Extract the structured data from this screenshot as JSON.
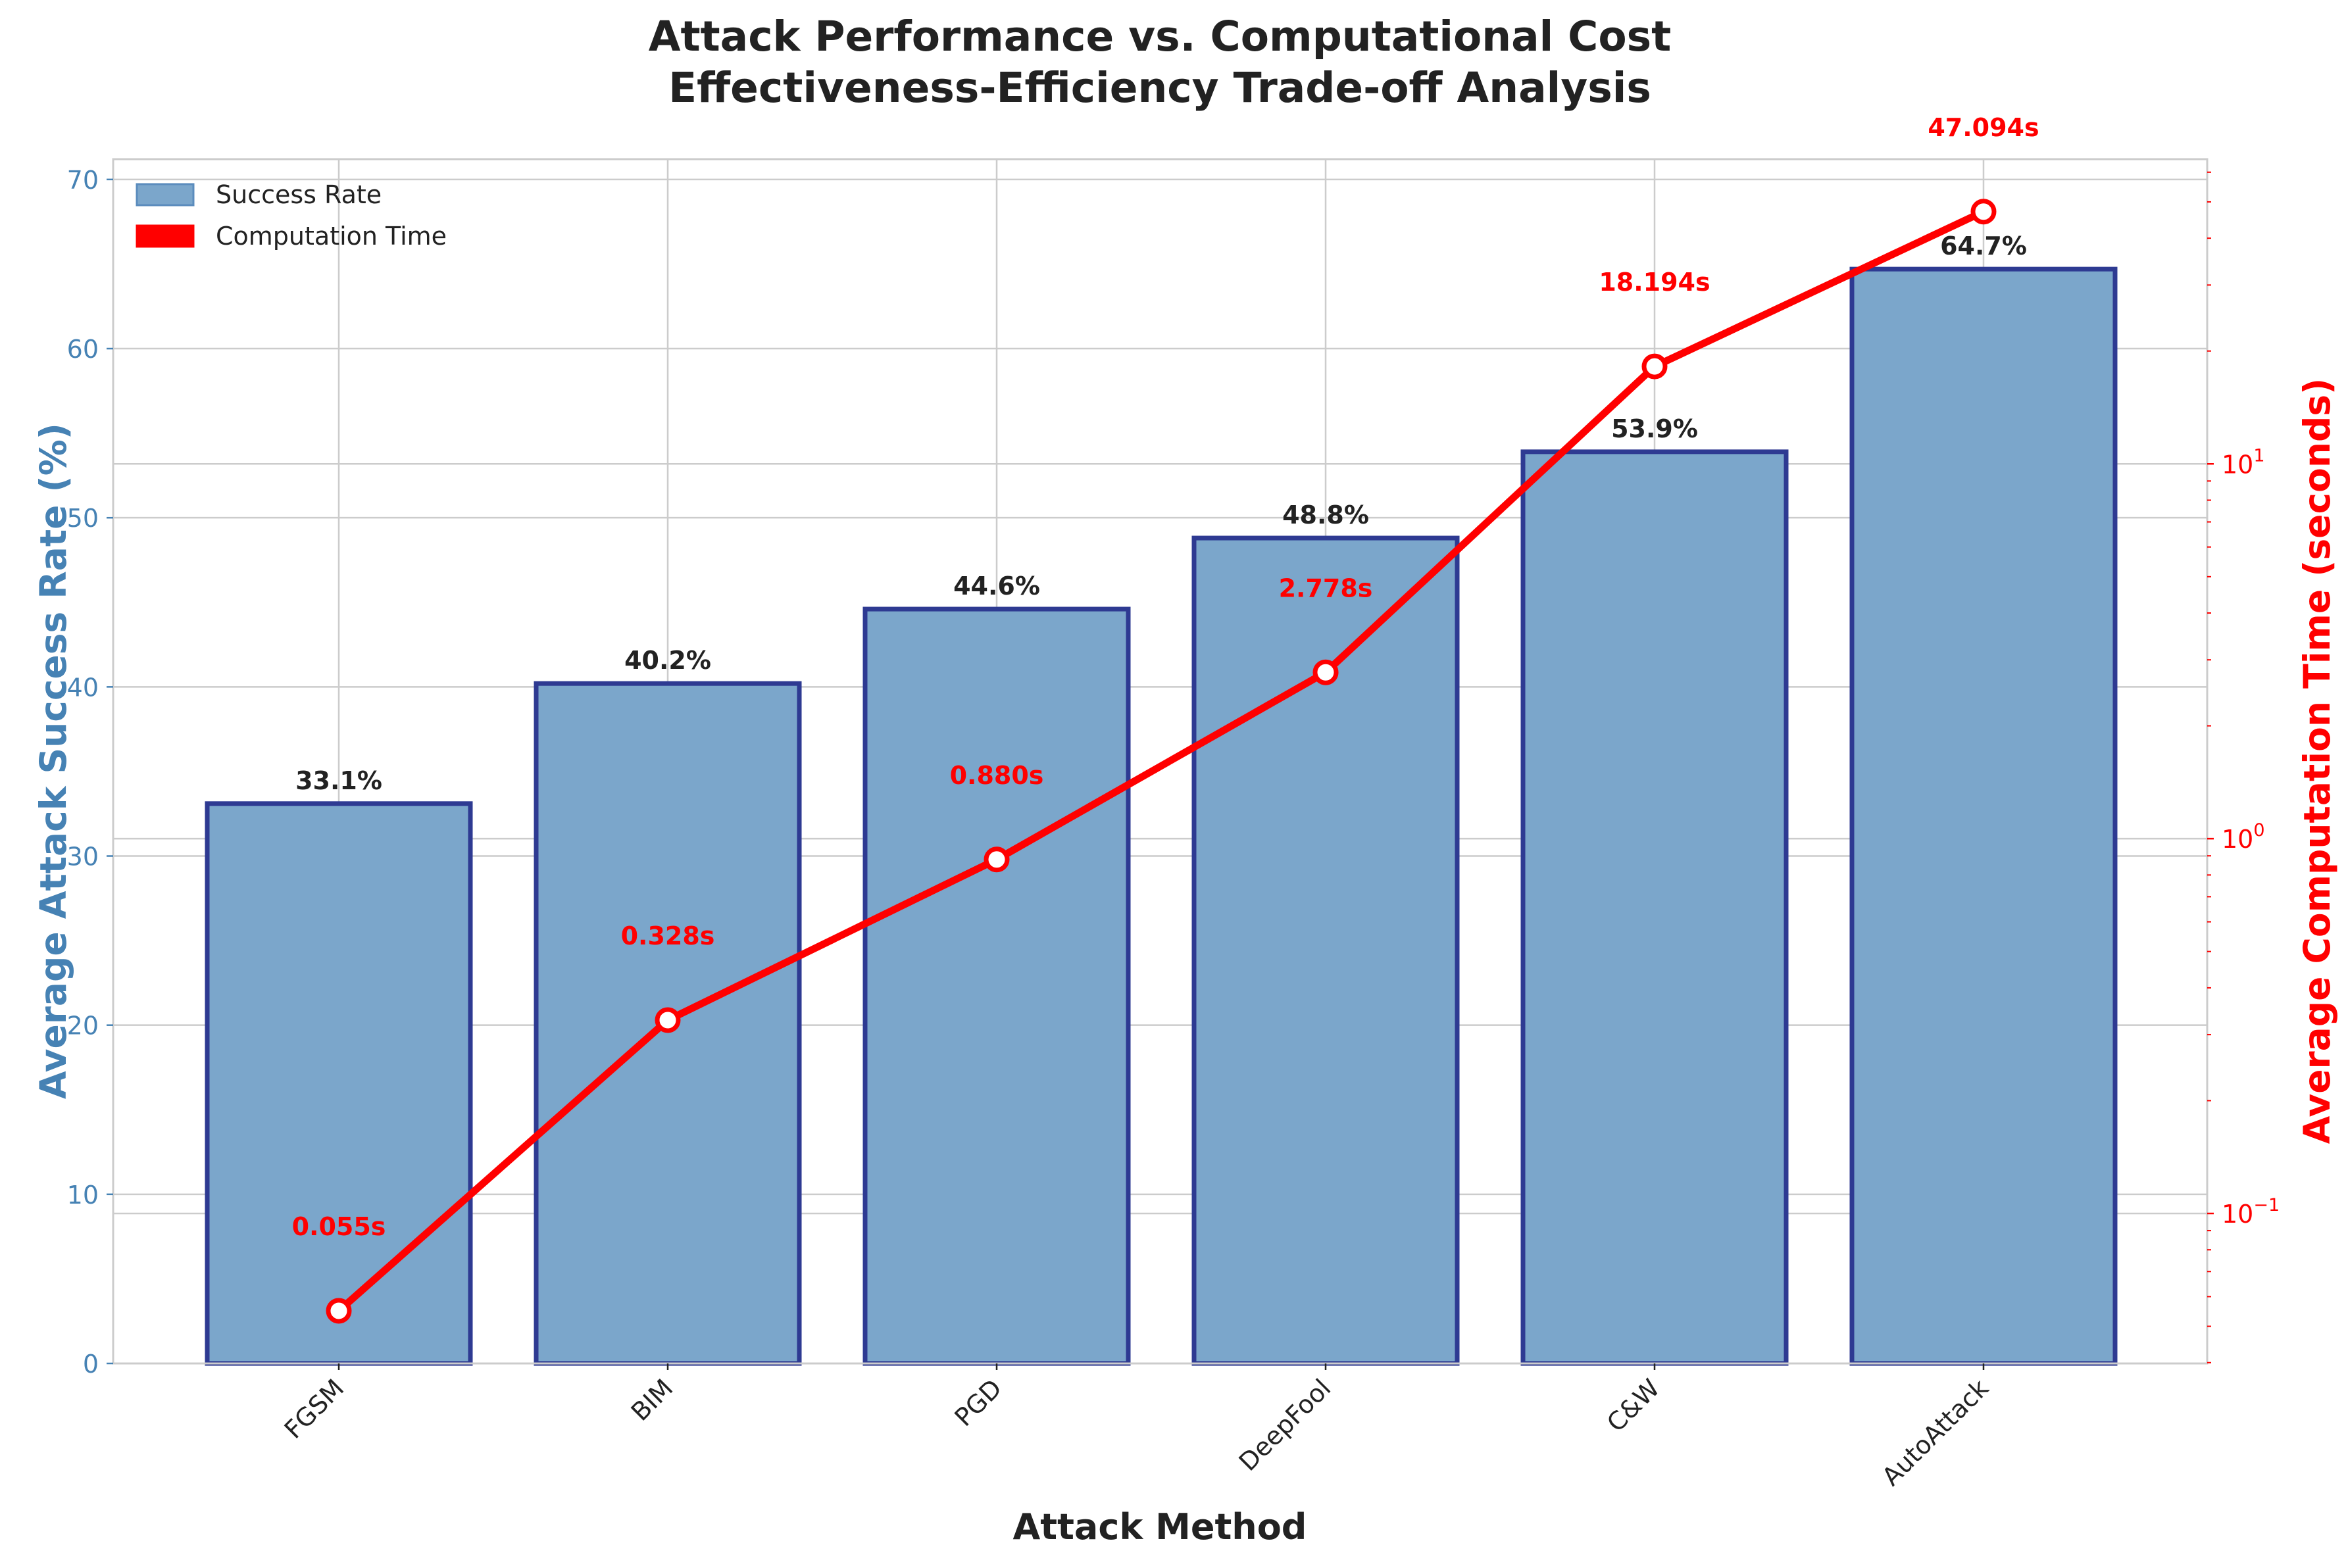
{
  "chart_data": {
    "type": "bar+line",
    "title_line1": "Attack Performance vs. Computational Cost",
    "title_line2": "Effectiveness-Efficiency Trade-off Analysis",
    "xlabel": "Attack Method",
    "ylabel_left": "Average Attack Success Rate (%)",
    "ylabel_right": "Average Computation Time (seconds)",
    "categories": [
      "FGSM",
      "BIM",
      "PGD",
      "DeepFool",
      "C&W",
      "AutoAttack"
    ],
    "series": [
      {
        "name": "Success Rate",
        "axis": "left",
        "kind": "bar",
        "values": [
          33.1,
          40.2,
          44.6,
          48.8,
          53.9,
          64.7
        ],
        "labels": [
          "33.1%",
          "40.2%",
          "44.6%",
          "48.8%",
          "53.9%",
          "64.7%"
        ]
      },
      {
        "name": "Computation Time",
        "axis": "right",
        "kind": "line",
        "scale": "log",
        "values": [
          0.055,
          0.328,
          0.88,
          2.778,
          18.194,
          47.094
        ],
        "labels": [
          "0.055s",
          "0.328s",
          "0.880s",
          "2.778s",
          "18.194s",
          "47.094s"
        ]
      }
    ],
    "ylim_left": [
      0,
      71.2
    ],
    "yticks_left": [
      "0",
      "10",
      "20",
      "30",
      "40",
      "50",
      "60",
      "70"
    ],
    "ylim_right": [
      0.0398,
      65
    ],
    "yticks_right": [
      {
        "base": "10",
        "exp": "−1",
        "value": 0.1
      },
      {
        "base": "10",
        "exp": "0",
        "value": 1
      },
      {
        "base": "10",
        "exp": "1",
        "value": 10
      }
    ],
    "legend": {
      "position": "top-left",
      "items": [
        {
          "label": "Success Rate",
          "color": "#7ba6cb"
        },
        {
          "label": "Computation Time",
          "color": "#ff0000"
        }
      ]
    },
    "grid": true,
    "colors": {
      "bar_fill": "#7ba6cb",
      "bar_edge": "#2e3a92",
      "line": "#ff0000",
      "left_axis": "#4682b4",
      "right_axis": "#ff0000",
      "text": "#222222",
      "grid": "#cccccc"
    }
  }
}
